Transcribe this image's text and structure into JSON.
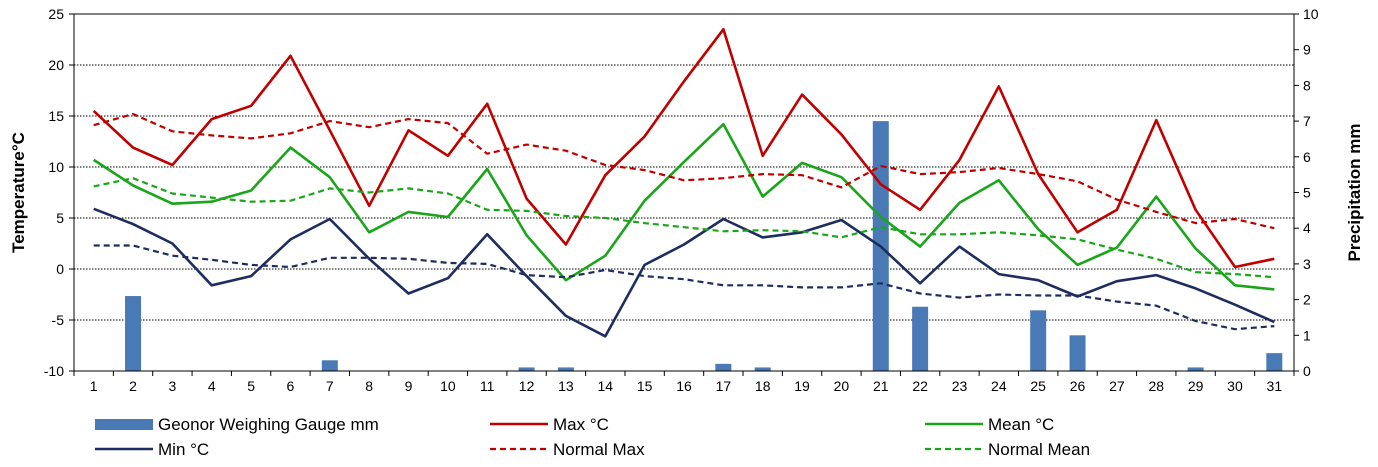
{
  "chart_data": {
    "type": "bar+line",
    "x": [
      1,
      2,
      3,
      4,
      5,
      6,
      7,
      8,
      9,
      10,
      11,
      12,
      13,
      14,
      15,
      16,
      17,
      18,
      19,
      20,
      21,
      22,
      23,
      24,
      25,
      26,
      27,
      28,
      29,
      30,
      31
    ],
    "xticklabels": [
      "1",
      "2",
      "3",
      "4",
      "5",
      "6",
      "7",
      "8",
      "9",
      "10",
      "11",
      "12",
      "13",
      "14",
      "15",
      "16",
      "17",
      "18",
      "19",
      "20",
      "21",
      "22",
      "23",
      "24",
      "25",
      "26",
      "27",
      "28",
      "29",
      "30",
      "31"
    ],
    "ylabel": "Temperature°C",
    "y2label": "Precipitation mm",
    "ylim": [
      -10,
      25
    ],
    "y2lim": [
      0,
      10
    ],
    "yticks": [
      -10,
      -5,
      0,
      5,
      10,
      15,
      20,
      25
    ],
    "y2ticks": [
      0,
      1,
      2,
      3,
      4,
      5,
      6,
      7,
      8,
      9,
      10
    ],
    "grid": "horizontal",
    "legend_position": "bottom",
    "bars": {
      "name": "Geonor Weighing Gauge mm",
      "color": "#4a7ab5",
      "axis": "right",
      "values": [
        0,
        2.1,
        0,
        0,
        0,
        0,
        0.3,
        0,
        0,
        0,
        0,
        0.1,
        0.1,
        0,
        0,
        0,
        0.2,
        0.1,
        0,
        0,
        7.0,
        1.8,
        0,
        0,
        1.7,
        1.0,
        0,
        0,
        0.1,
        0,
        0.5
      ]
    },
    "series": [
      {
        "name": "Max °C",
        "color": "#c00000",
        "dash": false,
        "values": [
          15.5,
          11.9,
          10.2,
          14.7,
          16.0,
          20.9,
          13.6,
          6.2,
          13.6,
          11.1,
          16.2,
          6.9,
          2.4,
          9.2,
          13.0,
          18.4,
          23.5,
          11.1,
          17.1,
          13.2,
          8.3,
          5.8,
          10.7,
          17.9,
          9.3,
          3.6,
          5.8,
          14.6,
          5.8,
          0.2,
          1.0
        ]
      },
      {
        "name": "Mean °C",
        "color": "#1aa51a",
        "dash": false,
        "values": [
          10.7,
          8.2,
          6.4,
          6.6,
          7.7,
          11.9,
          9.0,
          3.6,
          5.6,
          5.1,
          9.8,
          3.3,
          -1.1,
          1.3,
          6.7,
          10.5,
          14.2,
          7.1,
          10.4,
          9.0,
          5.1,
          2.2,
          6.5,
          8.7,
          3.9,
          0.4,
          2.1,
          7.1,
          2.0,
          -1.6,
          -2.0
        ]
      },
      {
        "name": "Min °C",
        "color": "#1f2d5e",
        "dash": false,
        "values": [
          5.9,
          4.4,
          2.5,
          -1.6,
          -0.7,
          2.9,
          4.9,
          1.0,
          -2.4,
          -0.9,
          3.4,
          -0.7,
          -4.6,
          -6.6,
          0.4,
          2.4,
          4.9,
          3.1,
          3.6,
          4.8,
          2.2,
          -1.4,
          2.2,
          -0.5,
          -1.1,
          -2.7,
          -1.2,
          -0.6,
          -1.9,
          -3.5,
          -5.2
        ]
      },
      {
        "name": "Normal Max",
        "color": "#c00000",
        "dash": true,
        "values": [
          14.1,
          15.2,
          13.5,
          13.1,
          12.8,
          13.3,
          14.5,
          13.9,
          14.7,
          14.3,
          11.3,
          12.2,
          11.6,
          10.2,
          9.7,
          8.7,
          8.9,
          9.3,
          9.2,
          8.0,
          10.1,
          9.3,
          9.5,
          9.9,
          9.3,
          8.6,
          6.8,
          5.6,
          4.5,
          4.9,
          4.0
        ]
      },
      {
        "name": "Normal Mean",
        "color": "#1aa51a",
        "dash": true,
        "values": [
          8.1,
          8.9,
          7.4,
          7.0,
          6.6,
          6.7,
          7.9,
          7.5,
          7.9,
          7.4,
          5.8,
          5.7,
          5.2,
          5.0,
          4.5,
          4.1,
          3.7,
          3.8,
          3.7,
          3.1,
          4.1,
          3.4,
          3.4,
          3.6,
          3.3,
          2.9,
          1.9,
          1.0,
          -0.3,
          -0.5,
          -0.8
        ]
      },
      {
        "name": "Normal Min",
        "color": "#1f2d5e",
        "dash": true,
        "values": [
          2.3,
          2.3,
          1.3,
          0.9,
          0.4,
          0.2,
          1.1,
          1.1,
          1.0,
          0.6,
          0.5,
          -0.6,
          -0.8,
          -0.1,
          -0.7,
          -1.0,
          -1.6,
          -1.6,
          -1.8,
          -1.8,
          -1.4,
          -2.4,
          -2.8,
          -2.5,
          -2.6,
          -2.6,
          -3.2,
          -3.6,
          -5.1,
          -5.9,
          -5.6
        ]
      }
    ],
    "legend": [
      {
        "name": "Geonor Weighing Gauge mm",
        "kind": "bar",
        "color": "#4a7ab5"
      },
      {
        "name": "Max °C",
        "kind": "line",
        "color": "#c00000",
        "dash": false
      },
      {
        "name": "Mean °C",
        "kind": "line",
        "color": "#1aa51a",
        "dash": false
      },
      {
        "name": "Min °C",
        "kind": "line",
        "color": "#1f2d5e",
        "dash": false
      },
      {
        "name": "Normal Max",
        "kind": "line",
        "color": "#c00000",
        "dash": true
      },
      {
        "name": "Normal Mean",
        "kind": "line",
        "color": "#1aa51a",
        "dash": true
      }
    ]
  }
}
